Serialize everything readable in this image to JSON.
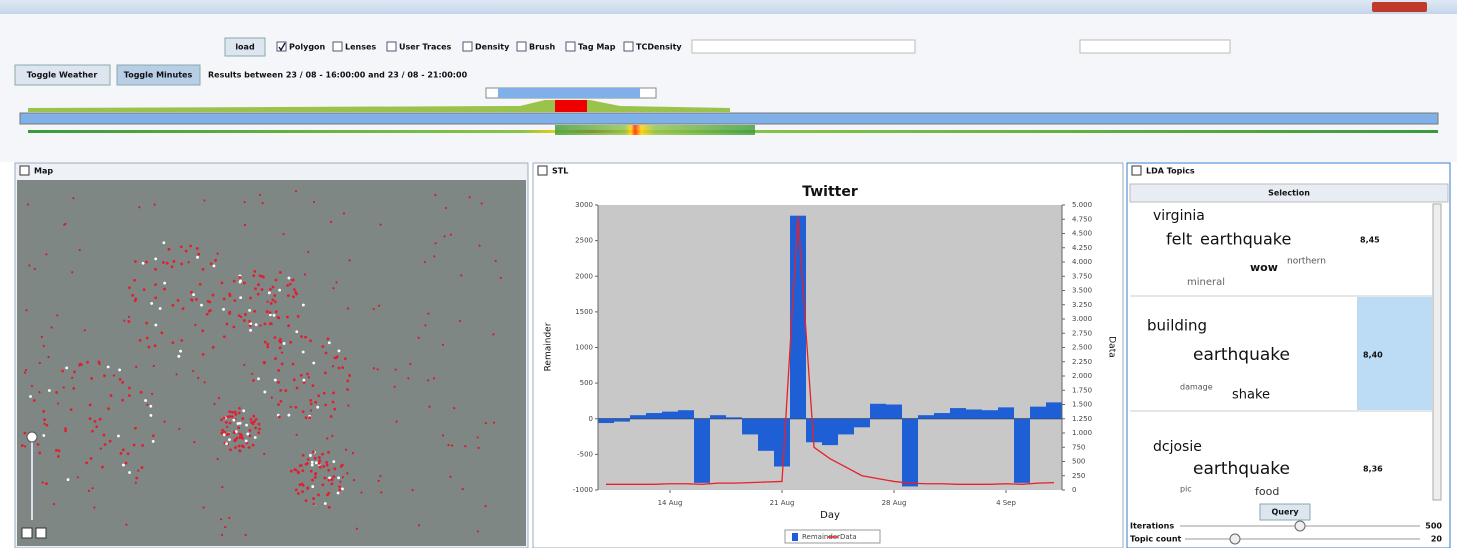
{
  "ui": {
    "toolbar": {
      "load": "load",
      "checks": [
        "Polygon",
        "Lenses",
        "User Traces",
        "Density",
        "Brush",
        "Tag Map",
        "TCDensity"
      ],
      "toggle_weather": "Toggle Weather",
      "toggle_minutes": "Toggle Minutes",
      "results": "Results between  23 / 08 - 16:00:00  and  23 / 08 - 21:00:00"
    },
    "panels": {
      "map": "Map",
      "stl": "STL",
      "lda": "LDA Topics"
    },
    "lda": {
      "header": "Selection",
      "topics": [
        {
          "words": [
            "virginia",
            "felt",
            "earthquake",
            "wow",
            "northern",
            "mineral"
          ],
          "score": "8,45"
        },
        {
          "words": [
            "building",
            "earthquake",
            "damage",
            "shake"
          ],
          "score": "8,40"
        },
        {
          "words": [
            "dcjosie",
            "earthquake",
            "pic",
            "food"
          ],
          "score": "8,36"
        }
      ],
      "query": "Query",
      "iterations": "Iterations",
      "iterations_value": "500",
      "topic_count": "Topic count",
      "topic_count_value": "20"
    }
  },
  "chart_data": {
    "type": "bar",
    "title": "Twitter",
    "xlabel": "Day",
    "ylabel": "Remainder",
    "y2label": "Data",
    "categories": [
      null,
      null,
      null,
      null,
      "14 Aug",
      null,
      null,
      null,
      null,
      null,
      null,
      "21 Aug",
      null,
      null,
      null,
      null,
      null,
      null,
      "28 Aug",
      null,
      null,
      null,
      null,
      null,
      null,
      "4 Sep",
      null,
      null,
      null
    ],
    "series": [
      {
        "name": "Remainder",
        "type": "bar",
        "color": "#1f5fd6",
        "values": [
          -60,
          -40,
          50,
          80,
          100,
          120,
          -900,
          50,
          20,
          -220,
          -450,
          -670,
          2850,
          -330,
          -370,
          -220,
          -120,
          210,
          200,
          -950,
          50,
          80,
          150,
          130,
          120,
          160,
          -900,
          170,
          230
        ]
      },
      {
        "name": "Data",
        "type": "line",
        "axis": "y2",
        "color": "#e8202a",
        "values": [
          100,
          100,
          100,
          100,
          110,
          110,
          100,
          120,
          120,
          130,
          140,
          150,
          4800,
          750,
          550,
          400,
          250,
          200,
          150,
          120,
          110,
          110,
          100,
          100,
          100,
          110,
          100,
          120,
          130
        ]
      }
    ],
    "ylim": [
      -1000,
      3000
    ],
    "yticks": [
      -1000,
      -500,
      0,
      500,
      1000,
      1500,
      2000,
      2500,
      3000
    ],
    "y2lim": [
      0,
      5000
    ],
    "y2ticks": [
      0,
      250,
      500,
      750,
      {
        "value": 1000,
        "label": "1.000"
      },
      {
        "value": 1250,
        "label": "1.250"
      },
      {
        "value": 1500,
        "label": "1.500"
      },
      {
        "value": 1750,
        "label": "1.750"
      },
      {
        "value": 2000,
        "label": "2.000"
      },
      {
        "value": 2250,
        "label": "2.250"
      },
      {
        "value": 2500,
        "label": "2.500"
      },
      {
        "value": 2750,
        "label": "2.750"
      },
      {
        "value": 3000,
        "label": "3.000"
      },
      {
        "value": 3250,
        "label": "3.250"
      },
      {
        "value": 3500,
        "label": "3.500"
      },
      {
        "value": 3750,
        "label": "3.750"
      },
      {
        "value": 4000,
        "label": "4.000"
      },
      {
        "value": 4250,
        "label": "4.250"
      },
      {
        "value": 4500,
        "label": "4.500"
      },
      {
        "value": 4750,
        "label": "4.750"
      },
      {
        "value": 5000,
        "label": "5.000"
      }
    ],
    "grid": false,
    "legend": "bottom"
  }
}
